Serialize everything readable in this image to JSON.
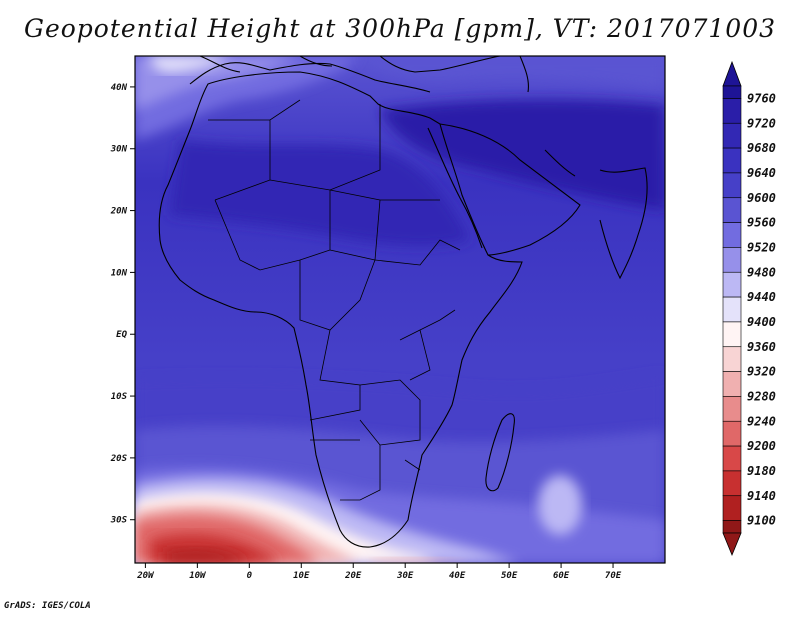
{
  "title": "Geopotential Height at 300hPa [gpm], VT: 2017071003",
  "credit": "GrADS: IGES/COLA",
  "map": {
    "lon_range": [
      -22,
      80
    ],
    "lat_range": [
      -37,
      45
    ],
    "x_ticks": [
      {
        "lon": -20,
        "label": "20W"
      },
      {
        "lon": -10,
        "label": "10W"
      },
      {
        "lon": 0,
        "label": "0"
      },
      {
        "lon": 10,
        "label": "10E"
      },
      {
        "lon": 20,
        "label": "20E"
      },
      {
        "lon": 30,
        "label": "30E"
      },
      {
        "lon": 40,
        "label": "40E"
      },
      {
        "lon": 50,
        "label": "50E"
      },
      {
        "lon": 60,
        "label": "60E"
      },
      {
        "lon": 70,
        "label": "70E"
      }
    ],
    "y_ticks": [
      {
        "lat": 40,
        "label": "40N"
      },
      {
        "lat": 30,
        "label": "30N"
      },
      {
        "lat": 20,
        "label": "20N"
      },
      {
        "lat": 10,
        "label": "10N"
      },
      {
        "lat": 0,
        "label": "EQ"
      },
      {
        "lat": -10,
        "label": "10S"
      },
      {
        "lat": -20,
        "label": "20S"
      },
      {
        "lat": -30,
        "label": "30S"
      }
    ]
  },
  "colorbar": {
    "levels": [
      "9760",
      "9720",
      "9680",
      "9640",
      "9600",
      "9560",
      "9520",
      "9480",
      "9440",
      "9400",
      "9360",
      "9320",
      "9280",
      "9240",
      "9200",
      "9180",
      "9140",
      "9100"
    ],
    "colors": [
      "#1e1496",
      "#2a1ea8",
      "#3228b4",
      "#3a32c0",
      "#4640c8",
      "#5a54d2",
      "#726ce0",
      "#9690ea",
      "#bcb8f4",
      "#e4e2fa",
      "#fff4f4",
      "#f8d4d4",
      "#f0b0b0",
      "#e88c8c",
      "#e06868",
      "#d84848",
      "#c83030",
      "#b02020",
      "#901818"
    ]
  }
}
